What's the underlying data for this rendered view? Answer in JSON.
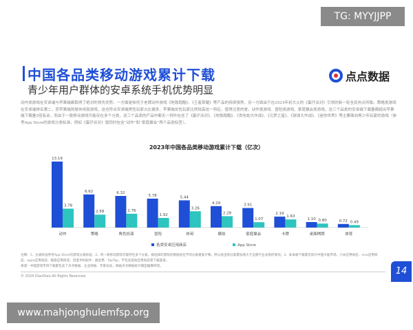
{
  "overlay_top": "TG: MYYJJPP",
  "overlay_bottom": "www.mahjonghulemfsp.org",
  "slide": {
    "title": "中国各品类移动游戏累计下载",
    "subtitle": "青少年用户群体的安卓系统手机优势明显",
    "logo_text": "点点数据",
    "body": "动作类游戏在安卓端与苹果端都取得了绝对的领先优势，一方面是依托于老牌动作游戏《地铁跑酷》、《王者荣耀》等产品的持续强势，另一方面由于在2023年初大火的《蛋仔派对》引领的新一轮全民热点所致。策略类游戏在安卓端排名第二，而苹果端则是休闲类游戏，这也符合安卓端男性玩家占比偏多、苹果端女性玩家比例较高这一特征。值得注意的是，动作类游戏、冒险类游戏、家庭聚会类游戏，这三个品类的安卓端下载量都超出苹果端下载量3倍有余，而由于一款移动游戏可能存在多个分类，这三个品类的产品中都无一例外包含了《蛋仔派对》、《地铁跑酷》、《贪吃蛇大作战》、《元梦之星》、《球球大作战》、《迷你世界》等主要面向青少年玩家的游戏（参考App Store的游戏分类标准，例如《蛋仔派对》就同时包含“动作”和“家庭聚会”两个品类标签）。",
    "notes": "注释：1、分类标准参考App Store的游戏分类标准；2、同一款移动游戏可能存在多个分类，被选择的游戏的数据会在不同分类重复计算，所以会出现分类累加值大于全部行业总值的情况；3、安卓端下载量仅统计中国大陆市场，小米应用商店、vivo应用商店、oppo应用商店、魅族应用商店、百度手机助手、豌豆荚、TapTap，不包含其他应用商店或下载渠道。\n来源：中国游戏市场下载量包含了点点数据、企业财报、专家访谈，根据点点数据统计模型推算所得。",
    "copyright": "© 2024 DianDian.All Rights Reserved.",
    "page_number": "14"
  },
  "colors": {
    "android": "#1f4fd6",
    "appstore": "#2ec4c0",
    "accent": "#1f4fd6"
  },
  "chart_data": {
    "type": "bar",
    "title": "2023年中国各品类移动游戏累计下载（亿次）",
    "categories": [
      "动作",
      "策略",
      "角色扮演",
      "冒险",
      "休闲",
      "模拟",
      "家庭聚会",
      "卡牌",
      "桌面棋牌",
      "体育"
    ],
    "series": [
      {
        "name": "各类安卓应用商店",
        "values": [
          13.19,
          6.62,
          6.32,
          5.78,
          5.44,
          4.29,
          3.91,
          2.19,
          1.1,
          0.72
        ]
      },
      {
        "name": "App Store",
        "values": [
          3.78,
          2.58,
          2.76,
          1.92,
          3.26,
          2.28,
          1.07,
          1.63,
          0.8,
          0.49
        ]
      }
    ],
    "legend": "bottom",
    "grid": false,
    "ylim": [
      0,
      13.19
    ]
  }
}
